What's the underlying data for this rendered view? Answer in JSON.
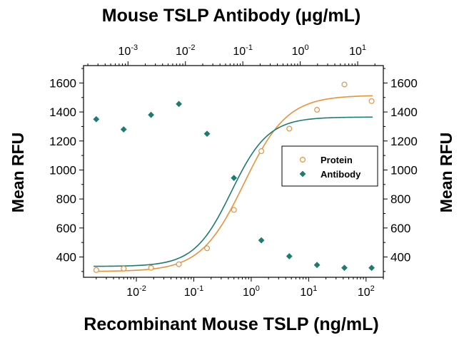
{
  "chart_data": {
    "type": "scatter",
    "title": "Mouse TSLP Antibody (μg/mL)",
    "xlabel": "Recombinant Mouse TSLP (ng/mL)",
    "ylabel": "Mean RFU",
    "y2label": "Mean RFU",
    "x_scale": "log",
    "xlim": [
      0.0012,
      200
    ],
    "ylim": [
      260,
      1720
    ],
    "y_ticks": [
      400,
      600,
      800,
      1000,
      1200,
      1400,
      1600
    ],
    "x_ticks_bottom": [
      {
        "value": 0.01,
        "base": "10",
        "exp": "-2"
      },
      {
        "value": 0.1,
        "base": "10",
        "exp": "-1"
      },
      {
        "value": 1,
        "base": "10",
        "exp": "0"
      },
      {
        "value": 10,
        "base": "10",
        "exp": "1"
      },
      {
        "value": 100,
        "base": "10",
        "exp": "2"
      }
    ],
    "x_ticks_top": [
      {
        "value": 0.001,
        "base": "10",
        "exp": "-3"
      },
      {
        "value": 0.01,
        "base": "10",
        "exp": "-2"
      },
      {
        "value": 0.1,
        "base": "10",
        "exp": "-1"
      },
      {
        "value": 1,
        "base": "10",
        "exp": "0"
      },
      {
        "value": 10,
        "base": "10",
        "exp": "1"
      }
    ],
    "top_axis_ratio": 0.14,
    "legend_position": "right-middle",
    "series": [
      {
        "name": "Protein",
        "color": "#E8923A",
        "marker": "open-circle",
        "x": [
          0.002,
          0.006,
          0.018,
          0.055,
          0.17,
          0.5,
          1.5,
          4.6,
          14,
          42,
          125
        ],
        "y": [
          310,
          320,
          325,
          350,
          460,
          725,
          1130,
          1285,
          1415,
          1590,
          1475
        ],
        "fit": {
          "bottom": 300,
          "top": 1515,
          "ec50": 0.75,
          "hill": 1.15
        }
      },
      {
        "name": "Antibody",
        "color": "#1E7B72",
        "marker": "filled-diamond",
        "x": [
          0.002,
          0.006,
          0.018,
          0.055,
          0.17,
          0.5,
          1.5,
          4.6,
          14,
          42,
          125
        ],
        "y": [
          1350,
          1280,
          1380,
          1455,
          1250,
          945,
          515,
          405,
          345,
          325,
          325
        ],
        "fit": {
          "bottom": 335,
          "top": 1365,
          "ec50": 0.45,
          "hill": 1.35
        }
      }
    ]
  }
}
